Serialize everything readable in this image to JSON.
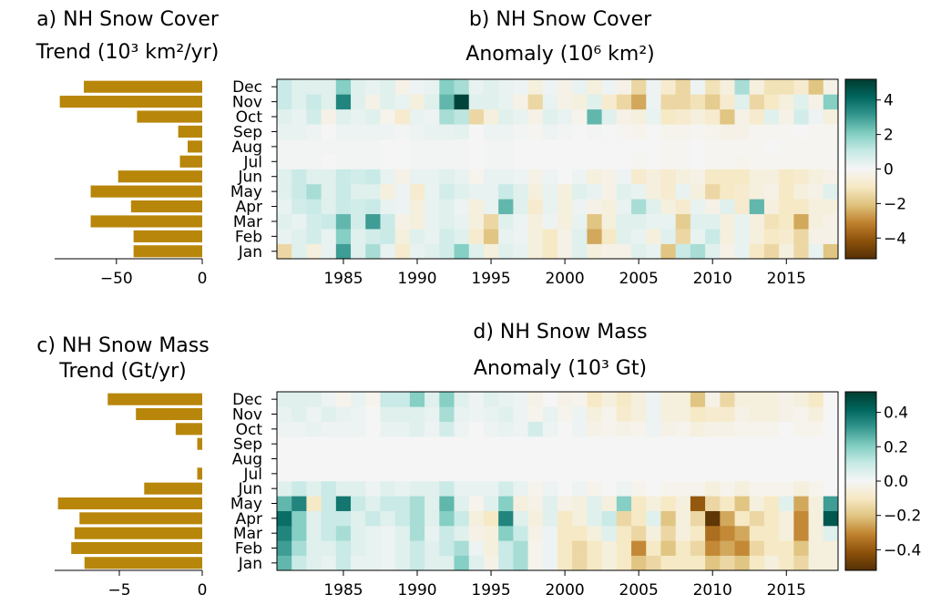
{
  "chart_data": [
    {
      "type": "barh",
      "title": [
        "a) NH Snow Cover",
        "Trend (10³ km²/yr)"
      ],
      "categories": [
        "Jan",
        "Feb",
        "Mar",
        "Apr",
        "May",
        "Jun",
        "Jul",
        "Aug",
        "Sep",
        "Oct",
        "Nov",
        "Dec"
      ],
      "values": [
        -40,
        -40,
        -65,
        -41.5,
        -65,
        -49,
        -13,
        -8.5,
        -14,
        -38,
        -83,
        -69
      ],
      "color": "#b8860b",
      "xlim": [
        -86,
        0
      ],
      "xticks": [
        {
          "value": -50,
          "label": "−50"
        },
        0
      ]
    },
    {
      "type": "heatmap",
      "title": [
        "b) NH Snow Cover",
        "Anomaly (10⁶ km²)"
      ],
      "x": [
        1981,
        1982,
        1983,
        1984,
        1985,
        1986,
        1987,
        1988,
        1989,
        1990,
        1991,
        1992,
        1993,
        1994,
        1995,
        1996,
        1997,
        1998,
        1999,
        2000,
        2001,
        2002,
        2003,
        2004,
        2005,
        2006,
        2007,
        2008,
        2009,
        2010,
        2011,
        2012,
        2013,
        2014,
        2015,
        2016,
        2017,
        2018
      ],
      "xlim": [
        1980.5,
        2018.5
      ],
      "xticks": [
        1985,
        1990,
        1995,
        2000,
        2005,
        2010,
        2015
      ],
      "z": [
        [
          -1.5,
          0.5,
          -0.5,
          0.3,
          3,
          0.5,
          1.5,
          0.3,
          -0.8,
          0.3,
          0.5,
          0.8,
          2,
          0.5,
          -0.5,
          0.5,
          0.3,
          -0.5,
          -1,
          -0.3,
          0.5,
          -0.5,
          -0.3,
          -0.3,
          0.5,
          0.3,
          -2,
          1,
          1.5,
          0.5,
          -0.3,
          0.3,
          -1,
          -1.5,
          -0.5,
          -1.5,
          0.3,
          -2
        ],
        [
          0.3,
          0.5,
          0.8,
          0.3,
          2,
          0.5,
          0.8,
          1,
          -0.5,
          0.5,
          0.3,
          0.8,
          0.5,
          -0.8,
          -2,
          0.3,
          0.2,
          -0.5,
          -1,
          -0.3,
          0.5,
          -2.5,
          -1,
          0.5,
          0.3,
          -0.5,
          0.5,
          -1.5,
          0.3,
          1,
          -0.5,
          0.3,
          -0.5,
          -1,
          -0.8,
          -1.5,
          -0.3,
          -0.3
        ],
        [
          0.5,
          0.3,
          0.8,
          1,
          2.5,
          0.8,
          3,
          1,
          -0.3,
          -0.5,
          0.3,
          0.5,
          0.3,
          -0.5,
          -1.5,
          0.5,
          0.2,
          -0.5,
          0.2,
          -0.5,
          0.3,
          -2,
          -0.5,
          0.5,
          0.5,
          0.3,
          0.3,
          -1.8,
          0.5,
          0.5,
          -0.5,
          0.3,
          -0.5,
          -1.2,
          -1,
          -2.5,
          -0.5,
          -0.3
        ],
        [
          0.3,
          0.8,
          1,
          0.5,
          1,
          0.8,
          1,
          0.3,
          0.2,
          -0.5,
          0.3,
          0.5,
          0.2,
          -0.5,
          0.3,
          2.5,
          0.5,
          -0.8,
          0.3,
          -0.5,
          0.2,
          -0.3,
          -0.5,
          0.3,
          1.5,
          0.5,
          -0.5,
          -0.8,
          0.3,
          -0.3,
          0.5,
          -0.8,
          2.5,
          -0.5,
          -1,
          -1,
          -0.5,
          -0.5
        ],
        [
          0.5,
          1,
          1.5,
          0.5,
          1,
          0.5,
          0.5,
          -0.5,
          0.2,
          -0.8,
          0.3,
          0.8,
          0.5,
          0.3,
          0.3,
          1,
          0.5,
          -0.5,
          0.3,
          -0.5,
          0.5,
          0.3,
          -0.3,
          0.5,
          0.3,
          -0.5,
          -0.8,
          0.3,
          -0.5,
          -1.5,
          -1,
          -0.8,
          -0.5,
          -0.3,
          -1,
          -0.5,
          -0.3,
          0.5
        ],
        [
          0.5,
          1,
          0.5,
          0.5,
          1,
          0.8,
          1,
          0.3,
          -0.3,
          0.3,
          0.3,
          0.5,
          0.3,
          -0.2,
          0.3,
          0.3,
          0.2,
          -0.3,
          0.2,
          0,
          0.2,
          -0.5,
          -0.3,
          0.2,
          -0.8,
          -0.5,
          -0.8,
          -0.5,
          -0.3,
          -1,
          -1,
          -1,
          -0.5,
          -0.5,
          -1,
          -0.8,
          -0.5,
          -0.3
        ],
        [
          0.1,
          0.1,
          0.1,
          0,
          0.1,
          0.1,
          0.1,
          0,
          0,
          0.1,
          0.1,
          0.1,
          0.1,
          0,
          0.1,
          0.1,
          0,
          0,
          0,
          0,
          0,
          0,
          0,
          0,
          -0.1,
          0,
          -0.1,
          -0.1,
          0,
          -0.1,
          -0.1,
          -0.2,
          -0.1,
          -0.1,
          -0.1,
          -0.1,
          -0.1,
          -0.1
        ],
        [
          0.1,
          0.1,
          0.1,
          0.1,
          0.1,
          0.1,
          0.1,
          0,
          0,
          0.1,
          0.1,
          0.1,
          0.1,
          0,
          0.1,
          0.1,
          0,
          0,
          0,
          0,
          0,
          0,
          0,
          0,
          0,
          0,
          -0.1,
          -0.1,
          0,
          -0.1,
          -0.1,
          -0.1,
          -0.1,
          0,
          -0.1,
          -0.1,
          -0.1,
          -0.1
        ],
        [
          0.3,
          0.3,
          0.2,
          0,
          0.2,
          0.2,
          0.2,
          0.2,
          0.1,
          0.2,
          0.3,
          0.3,
          0.4,
          0,
          0.2,
          0.2,
          0.1,
          -0.1,
          0.2,
          0.1,
          0,
          0.1,
          0,
          -0.1,
          -0.2,
          0,
          -0.2,
          -0.2,
          -0.1,
          -0.2,
          -0.3,
          -0.3,
          -0.1,
          -0.1,
          -0.1,
          0,
          -0.1,
          -0.1
        ],
        [
          0.5,
          0.3,
          0.8,
          -0.3,
          0.5,
          0.3,
          0.5,
          -0.2,
          -0.8,
          0.3,
          0.2,
          1.5,
          1.2,
          -1.5,
          -0.5,
          0.5,
          0.3,
          -0.3,
          0.5,
          0.3,
          -0.2,
          2.5,
          0.5,
          -0.3,
          -0.5,
          0.3,
          -1,
          -0.8,
          -0.5,
          -0.8,
          -2,
          -0.3,
          -0.8,
          0.5,
          -0.3,
          0.8,
          0.2,
          -0.5
        ],
        [
          1,
          0.5,
          1,
          0.5,
          3.5,
          0.5,
          -0.3,
          0.5,
          0.3,
          -0.5,
          0.5,
          2.5,
          5,
          0.5,
          0.5,
          0.3,
          -0.3,
          -1.5,
          0.3,
          -0.3,
          -0.5,
          0.5,
          -0.8,
          -1.5,
          -2.5,
          0.2,
          -1.5,
          -1.5,
          -1.2,
          -1.8,
          -0.8,
          0.5,
          -1.5,
          -1,
          -0.5,
          0.5,
          -0.3,
          2
        ],
        [
          1,
          0.5,
          0.5,
          0.5,
          2,
          0.5,
          0.3,
          0.5,
          -0.3,
          0.2,
          0.3,
          2,
          1.5,
          0.3,
          0.5,
          0.3,
          0.2,
          -0.5,
          0.2,
          -0.3,
          0.3,
          -0.5,
          0.2,
          -0.3,
          -1.5,
          0.2,
          -0.8,
          -1.5,
          0.2,
          -1.2,
          -0.5,
          1.5,
          -0.5,
          -1.2,
          -1.2,
          -0.8,
          -2,
          -0.3
        ]
      ],
      "zlim": [
        -5.2,
        5.2
      ],
      "zticks": [
        {
          "value": -4,
          "label": "−4"
        },
        {
          "value": -2,
          "label": "−2"
        },
        0,
        2,
        4
      ],
      "colormap": [
        "#543005",
        "#8c510a",
        "#bf812d",
        "#dfc27d",
        "#f6e8c3",
        "#f5f5f5",
        "#c7eae5",
        "#80cdc1",
        "#35978f",
        "#01665e",
        "#003c30"
      ]
    },
    {
      "type": "barh",
      "title": [
        "c) NH Snow Mass",
        "Trend (Gt/yr)"
      ],
      "categories": [
        "Jan",
        "Feb",
        "Mar",
        "Apr",
        "May",
        "Jun",
        "Jul",
        "Aug",
        "Sep",
        "Oct",
        "Nov",
        "Dec"
      ],
      "values": [
        -7.1,
        -7.9,
        -7.7,
        -7.4,
        -8.7,
        -3.5,
        -0.3,
        0,
        -0.3,
        -1.6,
        -4.0,
        -5.7
      ],
      "color": "#b8860b",
      "xlim": [
        -8.9,
        0
      ],
      "xticks": [
        {
          "value": -5,
          "label": "−5"
        },
        0
      ]
    },
    {
      "type": "heatmap",
      "title": [
        "d) NH Snow Mass",
        "Anomaly (10³ Gt)"
      ],
      "x": [
        1981,
        1982,
        1983,
        1984,
        1985,
        1986,
        1987,
        1988,
        1989,
        1990,
        1991,
        1992,
        1993,
        1994,
        1995,
        1996,
        1997,
        1998,
        1999,
        2000,
        2001,
        2002,
        2003,
        2004,
        2005,
        2006,
        2007,
        2008,
        2009,
        2010,
        2011,
        2012,
        2013,
        2014,
        2015,
        2016,
        2017,
        2018
      ],
      "xlim": [
        1980.5,
        2018.5
      ],
      "xticks": [
        1985,
        1990,
        1995,
        2000,
        2005,
        2010,
        2015
      ],
      "z": [
        [
          0.25,
          0.1,
          0.05,
          0.03,
          0.1,
          0.03,
          0.03,
          0.02,
          0.05,
          0.1,
          0.05,
          0.05,
          0.2,
          0.05,
          -0.03,
          0.1,
          0.15,
          -0.02,
          0.02,
          -0.1,
          -0.15,
          -0.1,
          -0.05,
          -0.1,
          -0.2,
          -0.15,
          -0.1,
          -0.1,
          -0.1,
          -0.2,
          -0.15,
          -0.2,
          -0.1,
          -0.05,
          -0.1,
          -0.15,
          -0.05,
          -0.05
        ],
        [
          0.3,
          0.15,
          0.05,
          0.05,
          0.1,
          0.05,
          0.03,
          0.02,
          0.05,
          0.1,
          0.05,
          0.1,
          0.15,
          0.02,
          -0.05,
          0.1,
          0.15,
          -0.02,
          0.02,
          -0.1,
          -0.15,
          -0.1,
          -0.05,
          -0.1,
          -0.3,
          -0.1,
          -0.2,
          -0.1,
          -0.15,
          -0.3,
          -0.25,
          -0.3,
          -0.15,
          -0.1,
          -0.1,
          -0.2,
          -0.05,
          -0.05
        ],
        [
          0.35,
          0.2,
          0.05,
          0.1,
          0.15,
          0.05,
          0.03,
          0.02,
          0.05,
          0.15,
          0.03,
          0.1,
          0.05,
          -0.03,
          -0.05,
          0.2,
          0.1,
          -0.03,
          0.02,
          -0.1,
          -0.1,
          -0.05,
          0.05,
          -0.1,
          -0.15,
          -0.05,
          -0.15,
          -0.05,
          -0.1,
          -0.35,
          -0.3,
          -0.25,
          -0.1,
          -0.1,
          -0.05,
          -0.3,
          -0.05,
          0.05
        ],
        [
          0.4,
          0.2,
          0.05,
          0.1,
          0.1,
          0.05,
          0.1,
          0.05,
          0.1,
          0.15,
          0.05,
          0.2,
          0.1,
          -0.05,
          -0.1,
          0.35,
          0.05,
          -0.05,
          0.05,
          -0.1,
          -0.05,
          0.05,
          0.1,
          -0.15,
          -0.1,
          0.05,
          -0.2,
          -0.05,
          -0.15,
          -0.5,
          -0.25,
          -0.1,
          -0.15,
          -0.1,
          -0.05,
          -0.3,
          -0.05,
          0.45
        ],
        [
          0.25,
          0.35,
          -0.1,
          0.1,
          0.38,
          0.1,
          0.05,
          0.1,
          0.1,
          0.15,
          0.05,
          0.25,
          0.05,
          -0.02,
          0.05,
          0.2,
          -0.05,
          -0.03,
          0.05,
          -0.03,
          -0.05,
          0.05,
          -0.05,
          0.2,
          -0.1,
          -0.05,
          -0.1,
          -0.05,
          -0.4,
          -0.15,
          -0.1,
          -0.2,
          -0.05,
          -0.1,
          0.05,
          -0.25,
          -0.05,
          0.3
        ],
        [
          0.05,
          0.1,
          0.05,
          0.1,
          0.05,
          0.05,
          0.02,
          0.05,
          0.03,
          0.05,
          0.05,
          0.1,
          0.03,
          0.03,
          0.03,
          0.08,
          0.03,
          -0.02,
          0.02,
          0,
          0.02,
          -0.02,
          0,
          0.02,
          -0.02,
          0,
          -0.02,
          -0.02,
          -0.02,
          -0.05,
          -0.02,
          -0.05,
          -0.02,
          -0.02,
          -0.02,
          -0.05,
          -0.02,
          0
        ],
        [
          0,
          0,
          0,
          0,
          0,
          0,
          0,
          0,
          0,
          0,
          0,
          0,
          0,
          0,
          0,
          0,
          0,
          0,
          0,
          0,
          0,
          0,
          0,
          0,
          0,
          0,
          0,
          0,
          0,
          0,
          0,
          0,
          0,
          0,
          0,
          0,
          0,
          0
        ],
        [
          0,
          0,
          0,
          0,
          0,
          0,
          0,
          0,
          0,
          0,
          0,
          0,
          0,
          0,
          0,
          0,
          0,
          0,
          0,
          0,
          0,
          0,
          0,
          0,
          0,
          0,
          0,
          0,
          0,
          0,
          0,
          0,
          0,
          0,
          0,
          0,
          0,
          0
        ],
        [
          0,
          0,
          0,
          0,
          0,
          0,
          0,
          0,
          0,
          0,
          0,
          0,
          0,
          0,
          0,
          0,
          0,
          0,
          0,
          0,
          0,
          0,
          0,
          0,
          0,
          0,
          0,
          0,
          0,
          0,
          0,
          0,
          0,
          0,
          0,
          0,
          0,
          0
        ],
        [
          0.02,
          0.02,
          0.03,
          0.02,
          0.02,
          0.02,
          0,
          0.03,
          0.03,
          0.05,
          0.02,
          0.08,
          0.02,
          0,
          0.02,
          0.03,
          0.02,
          0.08,
          0.02,
          0,
          0.02,
          -0.03,
          -0.02,
          -0.03,
          -0.02,
          0.02,
          -0.03,
          -0.02,
          -0.05,
          -0.03,
          -0.03,
          -0.02,
          -0.02,
          -0.02,
          0,
          -0.02,
          -0.02,
          0
        ],
        [
          0.03,
          0.05,
          0.02,
          0.05,
          0.03,
          0.02,
          0,
          0.05,
          0.05,
          0.05,
          0.03,
          0.15,
          0.03,
          0.02,
          0.03,
          0.05,
          0.02,
          -0.02,
          0.03,
          -0.02,
          0.02,
          -0.05,
          -0.02,
          -0.08,
          -0.05,
          0.02,
          -0.05,
          -0.05,
          -0.1,
          -0.08,
          -0.08,
          -0.03,
          -0.05,
          -0.05,
          -0.03,
          -0.02,
          -0.05,
          0
        ],
        [
          0.05,
          0.05,
          0.05,
          0.02,
          -0.02,
          0.03,
          -0.02,
          0.1,
          0.1,
          0.2,
          0.05,
          0.2,
          0.05,
          0.02,
          0.05,
          0.03,
          0.02,
          -0.03,
          0,
          -0.03,
          -0.02,
          -0.1,
          -0.05,
          -0.1,
          -0.05,
          0.02,
          -0.05,
          -0.05,
          -0.2,
          -0.03,
          -0.15,
          -0.05,
          -0.05,
          -0.05,
          -0.03,
          -0.05,
          -0.1,
          0
        ]
      ],
      "zlim": [
        -0.52,
        0.52
      ],
      "zticks": [
        {
          "value": -0.4,
          "label": "−0.4"
        },
        {
          "value": -0.2,
          "label": "−0.2"
        },
        {
          "value": 0,
          "label": "0.0"
        },
        0.2,
        0.4
      ],
      "colormap": [
        "#543005",
        "#8c510a",
        "#bf812d",
        "#dfc27d",
        "#f6e8c3",
        "#f5f5f5",
        "#c7eae5",
        "#80cdc1",
        "#35978f",
        "#01665e",
        "#003c30"
      ]
    }
  ]
}
